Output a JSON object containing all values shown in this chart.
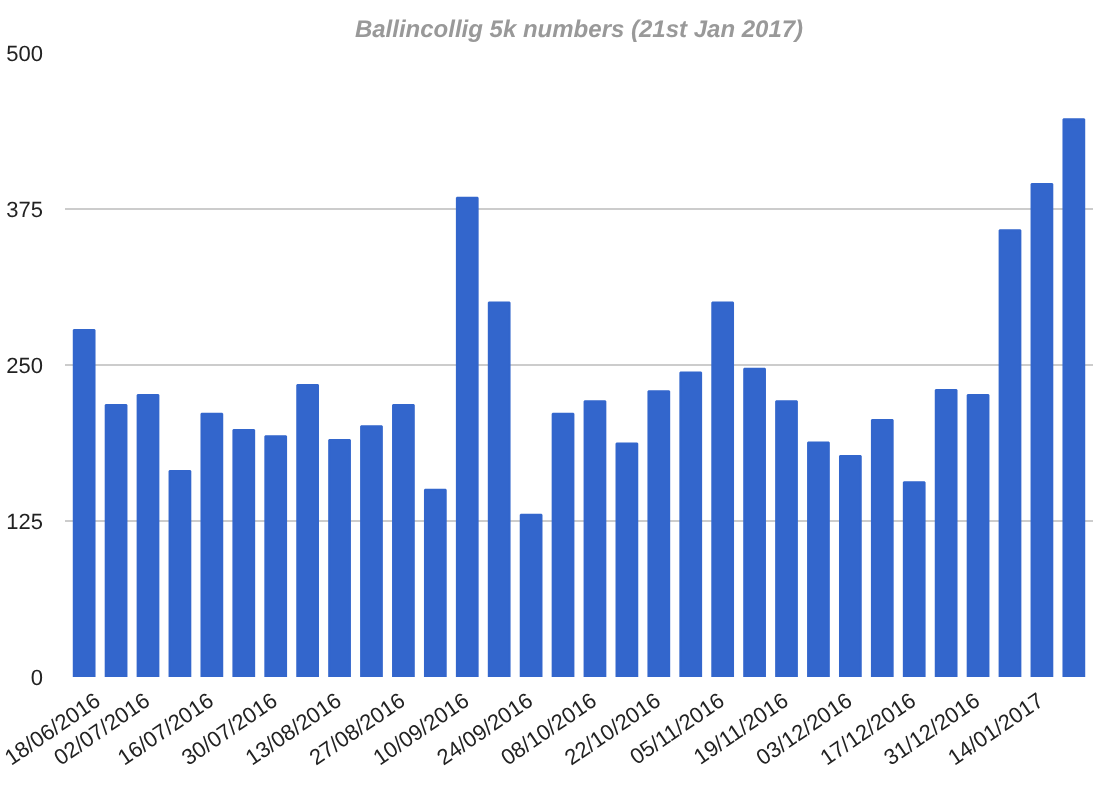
{
  "chart_data": {
    "type": "bar",
    "title": "Ballincollig 5k numbers (21st Jan 2017)",
    "categories": [
      "18/06/2016",
      null,
      "02/07/2016",
      null,
      "16/07/2016",
      null,
      "30/07/2016",
      null,
      "13/08/2016",
      null,
      "27/08/2016",
      null,
      "10/09/2016",
      null,
      "24/09/2016",
      null,
      "08/10/2016",
      null,
      "22/10/2016",
      null,
      "05/11/2016",
      null,
      "19/11/2016",
      null,
      "03/12/2016",
      null,
      "17/12/2016",
      null,
      "31/12/2016",
      null,
      "14/01/2017",
      null
    ],
    "values": [
      278,
      218,
      226,
      165,
      211,
      198,
      193,
      234,
      190,
      201,
      218,
      150,
      384,
      300,
      130,
      211,
      221,
      187,
      229,
      244,
      300,
      247,
      221,
      188,
      177,
      206,
      156,
      230,
      226,
      358,
      395,
      447
    ],
    "color": "#3366cc",
    "ylim": [
      0,
      500
    ],
    "yticks": [
      0,
      125,
      250,
      375,
      500
    ],
    "grid": "y"
  }
}
